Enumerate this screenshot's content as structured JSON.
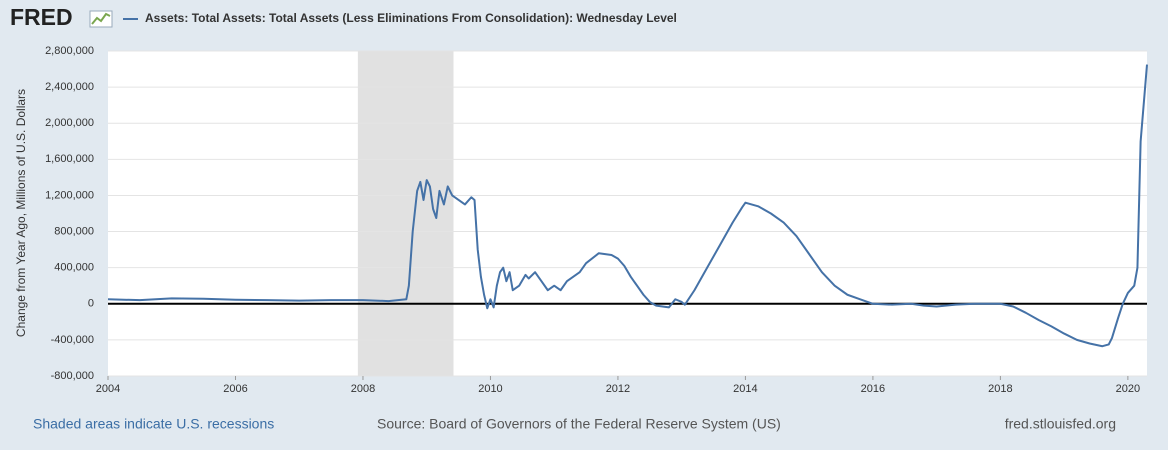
{
  "logo": "FRED",
  "chart_data": {
    "type": "line",
    "title": "Assets: Total Assets: Total Assets (Less Eliminations From Consolidation): Wednesday Level",
    "y_label": "Change from Year Ago, Millions of U.S. Dollars",
    "recessions": [
      {
        "start": 2007.92,
        "end": 2009.42
      }
    ],
    "recession_note": "Shaded areas indicate U.S. recessions",
    "source": "Source: Board of Governors of the Federal Reserve System (US)",
    "site": "fred.stlouisfed.org",
    "xlim": [
      2004,
      2020.3
    ],
    "xticks": [
      2004,
      2006,
      2008,
      2010,
      2012,
      2014,
      2016,
      2018,
      2020
    ],
    "ylim": [
      -800000,
      2800000
    ],
    "yticks": [
      {
        "value": -800000,
        "label": "-800,000"
      },
      {
        "value": -400000,
        "label": "-400,000"
      },
      0,
      {
        "value": 400000,
        "label": "400,000"
      },
      {
        "value": 800000,
        "label": "800,000"
      },
      {
        "value": 1200000,
        "label": "1,200,000"
      },
      {
        "value": 1600000,
        "label": "1,600,000"
      },
      {
        "value": 2000000,
        "label": "2,000,000"
      },
      {
        "value": 2400000,
        "label": "2,400,000"
      },
      {
        "value": 2800000,
        "label": "2,800,000"
      }
    ],
    "grid": true,
    "series": [
      {
        "name": "Assets: Total Assets: Total Assets (Less Eliminations From Consolidation): Wednesday Level",
        "color": "#4572a7",
        "x": [
          2004.0,
          2004.5,
          2005.0,
          2005.5,
          2006.0,
          2006.5,
          2007.0,
          2007.5,
          2008.0,
          2008.4,
          2008.68,
          2008.72,
          2008.78,
          2008.85,
          2008.9,
          2008.95,
          2009.0,
          2009.05,
          2009.1,
          2009.15,
          2009.2,
          2009.27,
          2009.33,
          2009.4,
          2009.5,
          2009.6,
          2009.7,
          2009.75,
          2009.8,
          2009.85,
          2009.9,
          2009.95,
          2010.0,
          2010.05,
          2010.1,
          2010.15,
          2010.2,
          2010.25,
          2010.3,
          2010.35,
          2010.45,
          2010.55,
          2010.6,
          2010.7,
          2010.8,
          2010.9,
          2011.0,
          2011.1,
          2011.2,
          2011.4,
          2011.5,
          2011.7,
          2011.9,
          2012.0,
          2012.1,
          2012.2,
          2012.4,
          2012.5,
          2012.6,
          2012.8,
          2012.9,
          2013.0,
          2013.05,
          2013.2,
          2013.4,
          2013.6,
          2013.8,
          2013.95,
          2014.0,
          2014.2,
          2014.4,
          2014.6,
          2014.8,
          2015.0,
          2015.2,
          2015.4,
          2015.6,
          2015.8,
          2016.0,
          2016.3,
          2016.6,
          2016.8,
          2017.0,
          2017.3,
          2017.6,
          2018.0,
          2018.2,
          2018.4,
          2018.6,
          2018.8,
          2019.0,
          2019.2,
          2019.4,
          2019.6,
          2019.7,
          2019.75,
          2019.85,
          2019.92,
          2020.0,
          2020.1,
          2020.15,
          2020.2,
          2020.3
        ],
        "values": [
          50000,
          40000,
          60000,
          55000,
          45000,
          40000,
          35000,
          40000,
          40000,
          30000,
          50000,
          200000,
          800000,
          1250000,
          1350000,
          1150000,
          1370000,
          1300000,
          1050000,
          950000,
          1250000,
          1100000,
          1300000,
          1200000,
          1150000,
          1100000,
          1180000,
          1150000,
          600000,
          300000,
          100000,
          -50000,
          50000,
          -40000,
          200000,
          350000,
          400000,
          250000,
          350000,
          150000,
          200000,
          320000,
          280000,
          350000,
          250000,
          150000,
          200000,
          150000,
          250000,
          350000,
          450000,
          560000,
          540000,
          500000,
          420000,
          300000,
          100000,
          20000,
          -20000,
          -40000,
          50000,
          20000,
          -10000,
          150000,
          400000,
          650000,
          900000,
          1070000,
          1120000,
          1080000,
          1000000,
          900000,
          750000,
          550000,
          350000,
          200000,
          100000,
          50000,
          0,
          -10000,
          0,
          -20000,
          -30000,
          -10000,
          0,
          0,
          -30000,
          -100000,
          -180000,
          -250000,
          -330000,
          -400000,
          -440000,
          -470000,
          -450000,
          -380000,
          -150000,
          0,
          120000,
          200000,
          400000,
          1800000,
          2650000
        ]
      }
    ]
  }
}
